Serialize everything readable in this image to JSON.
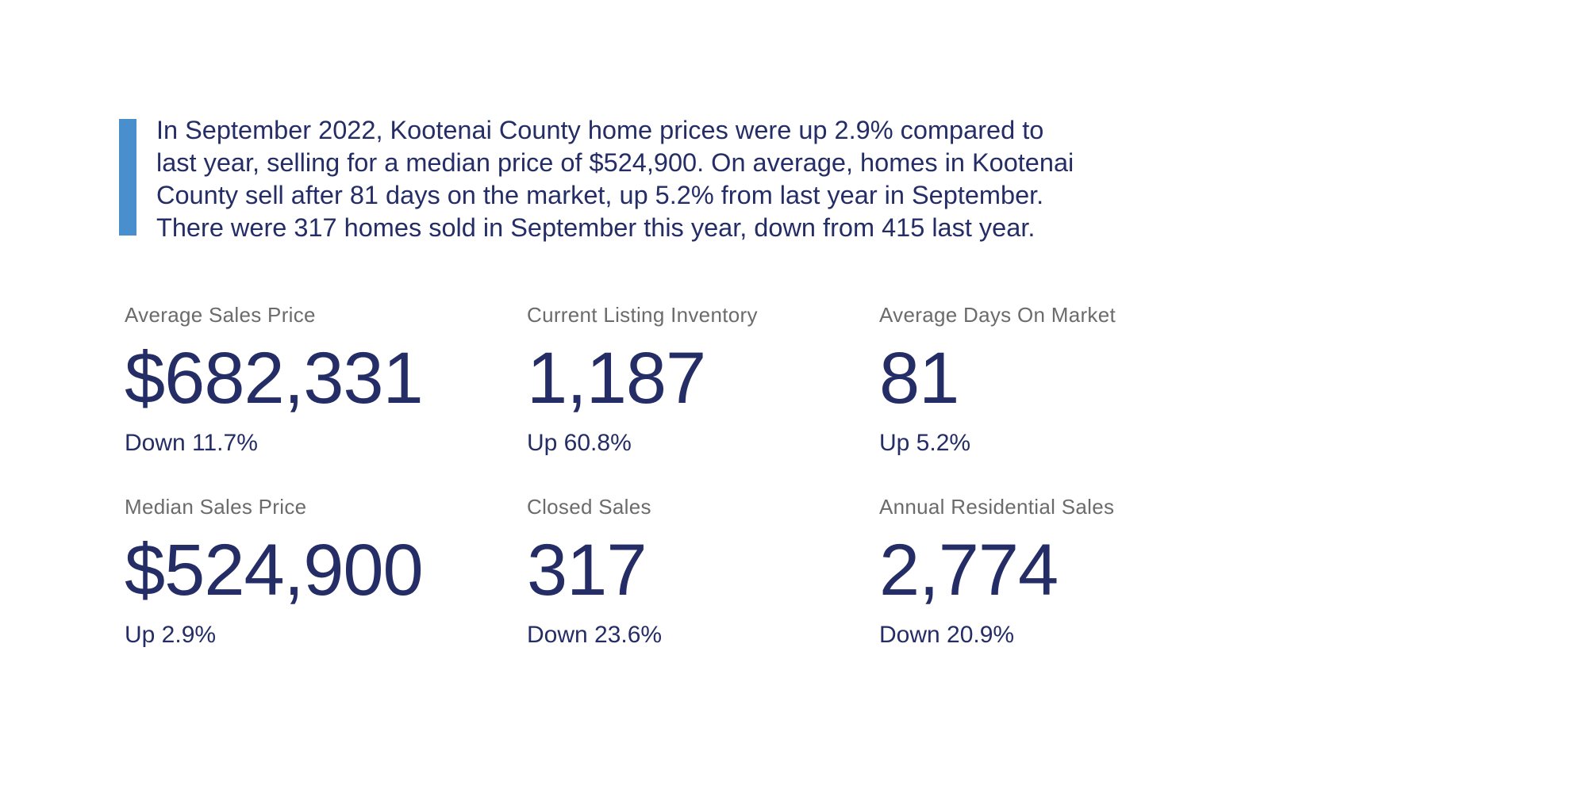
{
  "summary": {
    "lines": [
      "In September 2022, Kootenai County home prices were up 2.9% compared to",
      "last year, selling for a median price of $524,900. On average, homes in Kootenai",
      "County sell after 81 days on the market, up 5.2% from last year in September.",
      "There were 317 homes sold in September this year, down from 415 last year."
    ]
  },
  "stats": [
    {
      "label": "Average Sales Price",
      "value": "$682,331",
      "change": "Down 11.7%"
    },
    {
      "label": "Current Listing Inventory",
      "value": "1,187",
      "change": "Up 60.8%"
    },
    {
      "label": "Average Days On Market",
      "value": "81",
      "change": "Up 5.2%"
    },
    {
      "label": "Median Sales Price",
      "value": "$524,900",
      "change": "Up 2.9%"
    },
    {
      "label": "Closed Sales",
      "value": "317",
      "change": "Down 23.6%"
    },
    {
      "label": "Annual Residential Sales",
      "value": "2,774",
      "change": "Down 20.9%"
    }
  ],
  "colors": {
    "accent": "#4a8fcd",
    "text": "#252d66",
    "label": "#6b6b6b"
  }
}
